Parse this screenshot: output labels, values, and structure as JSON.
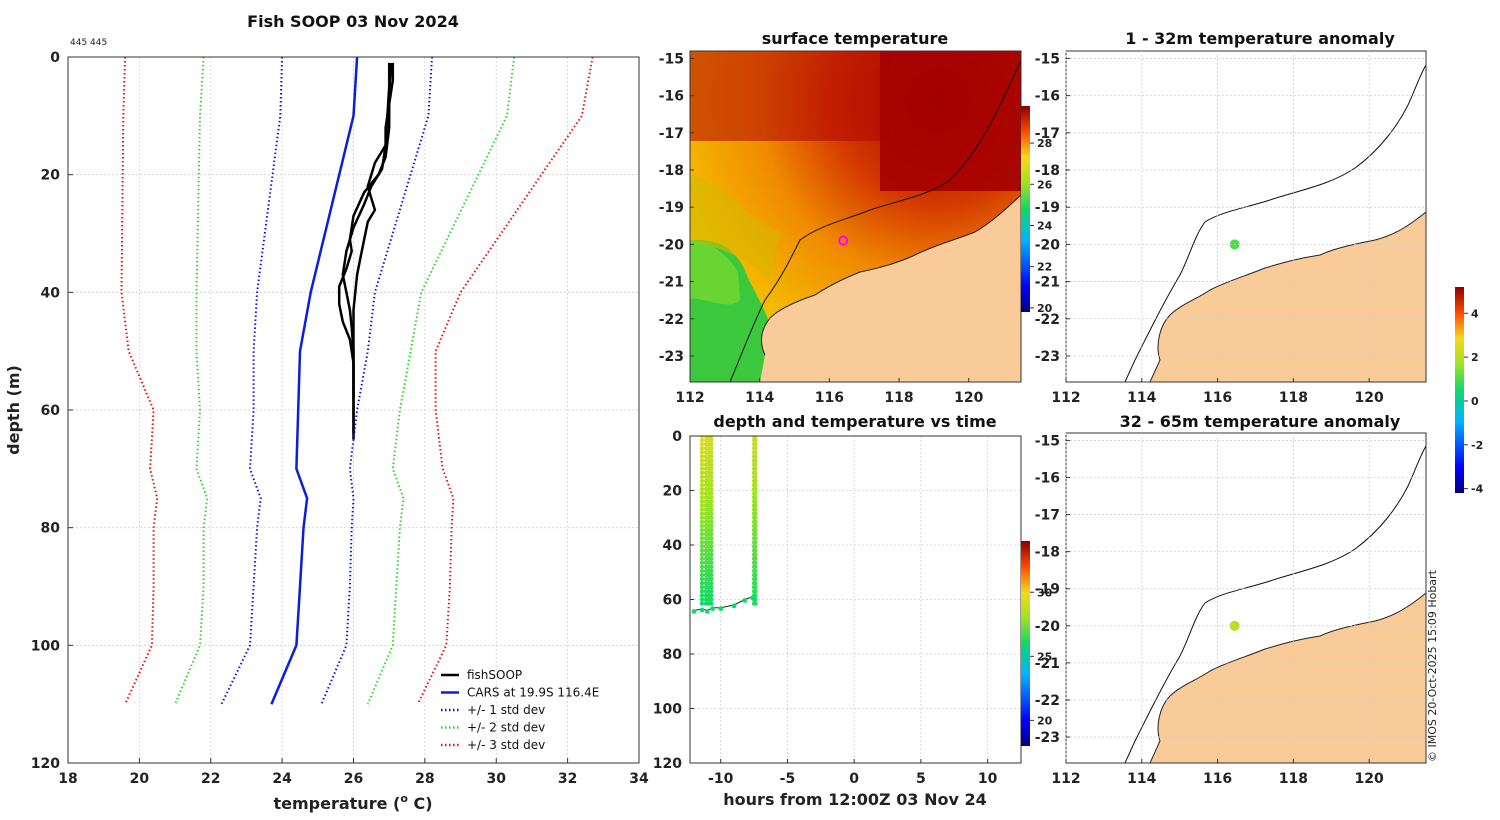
{
  "figure": {
    "title": "Fish SOOP 03 Nov 2024",
    "id_text": "445 445",
    "credit": "© IMOS 20-Oct-2025 15:09 Hobart"
  },
  "colors": {
    "fishsoop": "#000000",
    "cars": "#0a1edc",
    "std1": "#1010e0",
    "std2": "#22dd22",
    "std3": "#e81010",
    "land": "#f9cb98"
  },
  "chart_data": [
    {
      "id": "profile",
      "type": "line",
      "title": "Fish SOOP 03 Nov 2024",
      "xlabel": "temperature (",
      "xlabel_sup": "o",
      "xlabel_tail": " C)",
      "ylabel": "depth (m)",
      "xlim": [
        18,
        34
      ],
      "ylim": [
        0,
        120
      ],
      "yreversed": true,
      "xticks": [
        "18",
        "20",
        "22",
        "24",
        "26",
        "28",
        "30",
        "32",
        "34"
      ],
      "yticks": [
        "0",
        "20",
        "40",
        "60",
        "80",
        "100",
        "120"
      ],
      "legend_position": "bottom-right",
      "depths": [
        0,
        10,
        40,
        50,
        60,
        70,
        75,
        80,
        90,
        100,
        110
      ],
      "series": [
        {
          "name": "fishSOOP",
          "legend": "fishSOOP",
          "style": "solid",
          "color": "#000000",
          "x": [
            27.1,
            27.1,
            27.0,
            26.9,
            26.9,
            26.6,
            26.5,
            26.4,
            26.5,
            26.6,
            26.4,
            26.3,
            26.2,
            26.1,
            26.05,
            26.0,
            26.0,
            26.0,
            26.0,
            26.0,
            26.0
          ],
          "y": [
            1,
            4,
            8,
            12,
            15,
            18,
            20,
            22,
            24,
            26,
            28,
            31,
            34,
            37,
            40,
            43,
            46,
            50,
            55,
            60,
            65
          ]
        },
        {
          "name": "fishSOOP2",
          "legend": "",
          "style": "solid",
          "color": "#000000",
          "x": [
            27.0,
            27.0,
            26.95,
            26.9,
            26.8,
            26.5,
            26.3,
            26.0,
            25.8,
            25.7,
            25.8,
            25.9,
            25.95,
            26.0,
            26.0,
            26.0,
            26.0
          ],
          "y": [
            1,
            5,
            10,
            15,
            19,
            22,
            25,
            29,
            33,
            37,
            40,
            43,
            46,
            50,
            55,
            60,
            64
          ]
        },
        {
          "name": "fishSOOP3",
          "legend": "",
          "style": "solid",
          "color": "#000000",
          "x": [
            27.05,
            27.0,
            27.0,
            26.9,
            26.7,
            26.3,
            26.0,
            25.9,
            25.95,
            25.8,
            25.6,
            25.6,
            25.7,
            25.9,
            26.0,
            26.0
          ],
          "y": [
            1,
            6,
            12,
            17,
            20,
            23,
            27,
            31,
            33,
            36,
            39,
            42,
            45,
            48,
            52,
            58
          ]
        },
        {
          "name": "CARS",
          "legend": "CARS at 19.9S 116.4E",
          "style": "solid",
          "color": "#0a1edc",
          "values": [
            26.1,
            26.0,
            24.8,
            24.5,
            24.45,
            24.4,
            24.7,
            24.6,
            24.5,
            24.4,
            23.7
          ]
        },
        {
          "name": "-1std",
          "legend": "+/- 1 std dev",
          "style": "dotted",
          "color": "#1010e0",
          "values": [
            24.0,
            23.95,
            23.3,
            23.2,
            23.2,
            23.1,
            23.4,
            23.3,
            23.2,
            23.1,
            22.3
          ]
        },
        {
          "name": "+1std",
          "legend": "",
          "style": "dotted",
          "color": "#1010e0",
          "values": [
            28.2,
            28.1,
            26.6,
            26.4,
            26.1,
            25.9,
            26.0,
            25.95,
            25.9,
            25.8,
            25.1
          ]
        },
        {
          "name": "-2std",
          "legend": "+/- 2 std dev",
          "style": "dotted",
          "color": "#22dd22",
          "values": [
            21.8,
            21.7,
            21.6,
            21.6,
            21.7,
            21.6,
            21.9,
            21.8,
            21.8,
            21.7,
            21.0
          ]
        },
        {
          "name": "+2std",
          "legend": "",
          "style": "dotted",
          "color": "#22dd22",
          "values": [
            30.5,
            30.3,
            27.9,
            27.6,
            27.3,
            27.1,
            27.4,
            27.3,
            27.2,
            27.1,
            26.4
          ]
        },
        {
          "name": "-3std",
          "legend": "+/- 3 std dev",
          "style": "dotted",
          "color": "#e81010",
          "values": [
            19.6,
            19.55,
            19.5,
            19.7,
            20.4,
            20.3,
            20.5,
            20.4,
            20.4,
            20.35,
            19.6
          ]
        },
        {
          "name": "+3std",
          "legend": "",
          "style": "dotted",
          "color": "#e81010",
          "values": [
            32.7,
            32.4,
            29.0,
            28.3,
            28.3,
            28.5,
            28.8,
            28.75,
            28.7,
            28.6,
            27.8
          ]
        }
      ]
    },
    {
      "id": "time",
      "type": "scatter",
      "title": "depth and temperature vs time",
      "xlabel": "hours from 12:00Z 03 Nov 24",
      "xlim": [
        -12.3,
        12.5
      ],
      "ylim": [
        0,
        120
      ],
      "yreversed": true,
      "xticks": [
        "-10",
        "-5",
        "0",
        "5",
        "10"
      ],
      "xtick_values": [
        -10,
        -5,
        0,
        5,
        10
      ],
      "yticks": [
        "0",
        "20",
        "40",
        "60",
        "80",
        "100",
        "120"
      ],
      "colorbar": {
        "ticks": [
          "20",
          "25",
          "30"
        ],
        "tick_values": [
          20,
          25,
          30
        ],
        "range": [
          18,
          34
        ]
      },
      "casts": [
        {
          "t_down": -11.1,
          "t_up": -11.4,
          "temp_top": 29.5,
          "temp_bottom": 26.0
        },
        {
          "t_down": -10.7,
          "t_up": -10.9,
          "temp_top": 29.2,
          "temp_bottom": 26.0
        },
        {
          "t_down": -7.4,
          "t_up": -7.5,
          "temp_top": 29.0,
          "temp_bottom": 26.2
        }
      ],
      "bottom_track": {
        "x": [
          -12.0,
          -11.4,
          -11.0,
          -10.6,
          -10.0,
          -9.0,
          -8.2,
          -7.6
        ],
        "y": [
          64,
          63.5,
          64,
          63,
          63,
          62,
          60,
          59
        ]
      }
    },
    {
      "id": "sst",
      "type": "heatmap",
      "title": "surface temperature",
      "xlim": [
        112,
        121.5
      ],
      "ylim": [
        -23.7,
        -14.8
      ],
      "xticks": [
        "112",
        "114",
        "116",
        "118",
        "120"
      ],
      "xtick_values": [
        112,
        114,
        116,
        118,
        120
      ],
      "yticks": [
        "-15",
        "-16",
        "-17",
        "-18",
        "-19",
        "-20",
        "-21",
        "-22",
        "-23"
      ],
      "ytick_values": [
        -15,
        -16,
        -17,
        -18,
        -19,
        -20,
        -21,
        -22,
        -23
      ],
      "colorbar": {
        "ticks": [
          "20",
          "22",
          "24",
          "26",
          "28"
        ],
        "tick_values": [
          20,
          22,
          24,
          26,
          28
        ],
        "range": [
          19.8,
          29.8
        ]
      },
      "marker": {
        "lon": 116.4,
        "lat": -19.9
      }
    },
    {
      "id": "anom1",
      "type": "heatmap",
      "title": "1 - 32m temperature anomaly",
      "xlim": [
        112,
        121.5
      ],
      "ylim": [
        -23.7,
        -14.8
      ],
      "xticks": [
        "112",
        "114",
        "116",
        "118",
        "120"
      ],
      "xtick_values": [
        112,
        114,
        116,
        118,
        120
      ],
      "yticks": [
        "-15",
        "-16",
        "-17",
        "-18",
        "-19",
        "-20",
        "-21",
        "-22",
        "-23"
      ],
      "ytick_values": [
        -15,
        -16,
        -17,
        -18,
        -19,
        -20,
        -21,
        -22,
        -23
      ],
      "point": {
        "lon": 116.45,
        "lat": -20.0,
        "anomaly": 1.0
      },
      "colorbar": {
        "ticks": [
          "4",
          "2",
          "0",
          "-2",
          "-4"
        ],
        "tick_values": [
          4,
          2,
          0,
          -2,
          -4
        ],
        "range": [
          -4.2,
          5.2
        ]
      }
    },
    {
      "id": "anom2",
      "type": "heatmap",
      "title": "32 - 65m temperature anomaly",
      "xlim": [
        112,
        121.5
      ],
      "ylim": [
        -23.7,
        -14.8
      ],
      "xticks": [
        "112",
        "114",
        "116",
        "118",
        "120"
      ],
      "xtick_values": [
        112,
        114,
        116,
        118,
        120
      ],
      "yticks": [
        "-15",
        "-16",
        "-17",
        "-18",
        "-19",
        "-20",
        "-21",
        "-22",
        "-23"
      ],
      "ytick_values": [
        -15,
        -16,
        -17,
        -18,
        -19,
        -20,
        -21,
        -22,
        -23
      ],
      "point": {
        "lon": 116.45,
        "lat": -20.0,
        "anomaly": 2.0
      }
    }
  ]
}
